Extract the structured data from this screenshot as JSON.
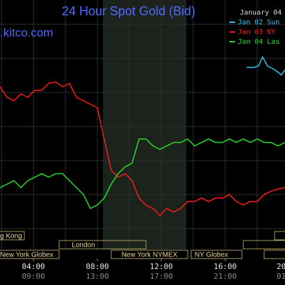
{
  "chart_data": {
    "type": "line",
    "title": "24 Hour Spot Gold (Bid)",
    "date_label": "January 04",
    "brand": ".kitco.com",
    "x": [
      1.91,
      2.35,
      2.78,
      3.21,
      3.65,
      4.08,
      4.52,
      4.95,
      5.39,
      5.82,
      6.26,
      6.69,
      7.13,
      7.56,
      8.0,
      8.43,
      8.87,
      9.3,
      9.74,
      10.17,
      10.61,
      11.04,
      11.48,
      11.91,
      12.34,
      12.78,
      13.21,
      13.65,
      14.08,
      14.52,
      14.95,
      15.39,
      15.82,
      16.26,
      16.69,
      17.13,
      17.56,
      18.0,
      18.43,
      18.87,
      19.3,
      19.74
    ],
    "series": [
      {
        "name": "Jan 02 Sun",
        "color": "#29c5f6",
        "x": [
          17.34,
          17.78,
          18.08,
          18.34,
          18.65,
          19.08,
          19.52,
          19.74
        ],
        "values": [
          78.9,
          78.9,
          79.6,
          84.0,
          79.6,
          77.9,
          75.2,
          77.9
        ]
      },
      {
        "name": "Jan 03 NY",
        "color": "#ff1a1a",
        "values": [
          69.4,
          64.3,
          62.6,
          66.0,
          64.3,
          67.7,
          67.7,
          71.1,
          71.8,
          69.4,
          71.1,
          64.3,
          62.6,
          60.9,
          59.2,
          43.9,
          28.6,
          25.2,
          26.9,
          23.5,
          15.0,
          11.6,
          9.9,
          6.5,
          9.9,
          8.2,
          9.9,
          13.3,
          13.3,
          15.0,
          13.3,
          15.0,
          15.0,
          16.7,
          13.3,
          11.6,
          13.3,
          13.3,
          16.7,
          18.4,
          19.4,
          20.1
        ]
      },
      {
        "name": "Jan 04 Las",
        "color": "#22e022",
        "values": [
          20.1,
          21.8,
          23.5,
          20.1,
          23.5,
          25.2,
          26.9,
          25.2,
          26.9,
          26.9,
          23.5,
          20.1,
          16.7,
          9.9,
          11.6,
          15.0,
          21.8,
          26.9,
          30.3,
          32.0,
          43.9,
          43.9,
          40.5,
          38.8,
          40.5,
          42.2,
          42.2,
          43.9,
          40.5,
          42.2,
          43.9,
          42.2,
          42.2,
          43.9,
          42.2,
          43.9,
          42.2,
          43.9,
          42.2,
          42.2,
          40.5,
          42.2
        ]
      }
    ],
    "xlim": [
      1.91,
      19.74
    ],
    "ylim": [
      0,
      100
    ],
    "xgrid": [
      2,
      4,
      6,
      8,
      10,
      12,
      14,
      16,
      18
    ],
    "ygrid": [
      0,
      16.7,
      33.3,
      50,
      66.7,
      83.3,
      100
    ],
    "shaded_range": [
      8.35,
      13.57
    ],
    "xticks": [
      {
        "value": 4,
        "label": "04:00"
      },
      {
        "value": 8,
        "label": "08:00"
      },
      {
        "value": 12,
        "label": "12:00"
      },
      {
        "value": 16,
        "label": "16:00"
      },
      {
        "value": 20,
        "label": "20"
      }
    ],
    "xticks_secondary": [
      {
        "value": 4,
        "label": "09:00"
      },
      {
        "value": 8,
        "label": "13:00"
      },
      {
        "value": 12,
        "label": "17:00"
      },
      {
        "value": 16,
        "label": "21:00"
      },
      {
        "value": 20,
        "label": "01"
      }
    ],
    "sessions": [
      "g Kong",
      "New York Globex",
      "London",
      "New York NYMEX",
      "NY Globex"
    ]
  }
}
